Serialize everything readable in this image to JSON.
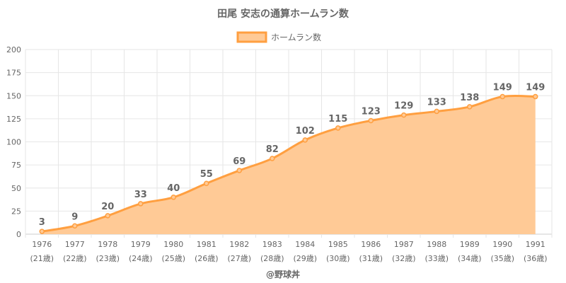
{
  "chart_data": {
    "type": "area",
    "title": "田尾 安志の通算ホームラン数",
    "legend": {
      "label": "ホームラン数",
      "position": "top"
    },
    "colors": {
      "fill": "#ffca96",
      "line": "#ff9f40",
      "text": "#666666",
      "grid": "#e6e6e6"
    },
    "ylim": [
      0,
      200
    ],
    "yticks": [
      0,
      25,
      50,
      75,
      100,
      125,
      150,
      175,
      200
    ],
    "grid": true,
    "categories": [
      "1976",
      "1977",
      "1978",
      "1979",
      "1980",
      "1981",
      "1982",
      "1983",
      "1984",
      "1985",
      "1986",
      "1987",
      "1988",
      "1989",
      "1990",
      "1991"
    ],
    "sublabels": [
      "(21歳)",
      "(22歳)",
      "(23歳)",
      "(24歳)",
      "(25歳)",
      "(26歳)",
      "(27歳)",
      "(28歳)",
      "(29歳)",
      "(30歳)",
      "(31歳)",
      "(32歳)",
      "(33歳)",
      "(34歳)",
      "(35歳)",
      "(36歳)"
    ],
    "series": [
      {
        "name": "ホームラン数",
        "values": [
          3,
          9,
          20,
          33,
          40,
          55,
          69,
          82,
          102,
          115,
          123,
          129,
          133,
          138,
          149,
          149
        ]
      }
    ]
  },
  "credit": "@野球丼"
}
